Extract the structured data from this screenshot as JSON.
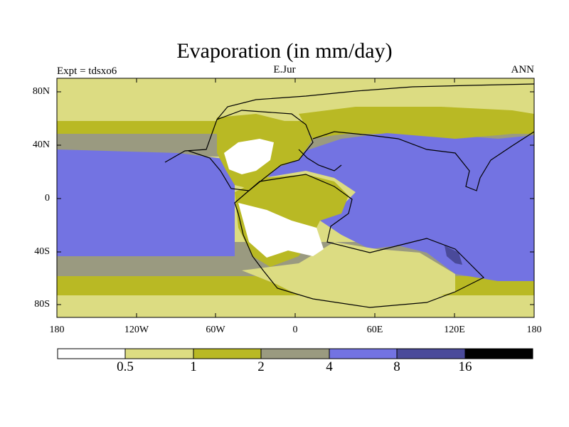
{
  "header": {
    "title": "Evaporation (in mm/day)",
    "left_label": "Expt = tdsxo6",
    "center_label": "E.Jur",
    "right_label": "ANN"
  },
  "axes": {
    "y_ticks": [
      "80N",
      "40N",
      "0",
      "40S",
      "80S"
    ],
    "x_ticks": [
      "180",
      "120W",
      "60W",
      "0",
      "60E",
      "120E",
      "180"
    ]
  },
  "colorbar": {
    "levels": [
      "0.5",
      "1",
      "2",
      "4",
      "8",
      "16"
    ],
    "colors": [
      "#ffffff",
      "#dcdc82",
      "#b9b924",
      "#9a9a80",
      "#7373e2",
      "#4a4a9a",
      "#000000"
    ]
  }
}
